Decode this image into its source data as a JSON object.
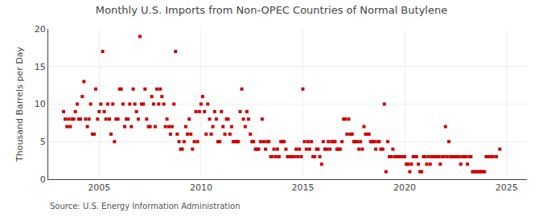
{
  "chart_data": {
    "type": "scatter",
    "title": "Monthly U.S. Imports from Non-OPEC Countries of Normal Butylene",
    "ylabel": "Thousand Barrels per Day",
    "source": "Source: U.S. Energy Information Administration",
    "color": "#cc0000",
    "marker": "square",
    "grid": true,
    "xlim": [
      2002.5,
      2026.0
    ],
    "ylim": [
      0,
      20
    ],
    "xticks": [
      2005,
      2010,
      2015,
      2020,
      2025
    ],
    "yticks": [
      0,
      5,
      10,
      15,
      20
    ],
    "x": [
      2003.25,
      2003.33,
      2003.42,
      2003.5,
      2003.58,
      2003.67,
      2003.75,
      2003.83,
      2003.92,
      2004.0,
      2004.08,
      2004.17,
      2004.25,
      2004.33,
      2004.42,
      2004.5,
      2004.58,
      2004.67,
      2004.75,
      2004.83,
      2004.92,
      2005.0,
      2005.08,
      2005.17,
      2005.25,
      2005.33,
      2005.42,
      2005.5,
      2005.58,
      2005.67,
      2005.75,
      2005.83,
      2005.92,
      2006.0,
      2006.08,
      2006.17,
      2006.25,
      2006.33,
      2006.42,
      2006.5,
      2006.58,
      2006.67,
      2006.75,
      2006.83,
      2006.92,
      2007.0,
      2007.08,
      2007.17,
      2007.25,
      2007.33,
      2007.42,
      2007.5,
      2007.58,
      2007.67,
      2007.75,
      2007.83,
      2007.92,
      2008.0,
      2008.08,
      2008.17,
      2008.25,
      2008.33,
      2008.42,
      2008.5,
      2008.58,
      2008.67,
      2008.75,
      2008.83,
      2008.92,
      2009.0,
      2009.08,
      2009.17,
      2009.25,
      2009.33,
      2009.42,
      2009.5,
      2009.58,
      2009.67,
      2009.75,
      2009.83,
      2009.92,
      2010.0,
      2010.08,
      2010.17,
      2010.25,
      2010.33,
      2010.42,
      2010.5,
      2010.58,
      2010.67,
      2010.75,
      2010.83,
      2010.92,
      2011.0,
      2011.08,
      2011.17,
      2011.25,
      2011.33,
      2011.42,
      2011.5,
      2011.58,
      2011.67,
      2011.75,
      2011.83,
      2011.92,
      2012.0,
      2012.08,
      2012.17,
      2012.25,
      2012.33,
      2012.42,
      2012.5,
      2012.58,
      2012.67,
      2012.75,
      2012.83,
      2012.92,
      2013.0,
      2013.08,
      2013.17,
      2013.25,
      2013.33,
      2013.42,
      2013.5,
      2013.58,
      2013.67,
      2013.75,
      2013.83,
      2013.92,
      2014.0,
      2014.08,
      2014.17,
      2014.25,
      2014.33,
      2014.42,
      2014.5,
      2014.58,
      2014.67,
      2014.75,
      2014.83,
      2014.92,
      2015.0,
      2015.08,
      2015.17,
      2015.25,
      2015.33,
      2015.42,
      2015.5,
      2015.58,
      2015.67,
      2015.75,
      2015.83,
      2015.92,
      2016.0,
      2016.08,
      2016.17,
      2016.25,
      2016.33,
      2016.42,
      2016.5,
      2016.58,
      2016.67,
      2016.75,
      2016.83,
      2016.92,
      2017.0,
      2017.08,
      2017.17,
      2017.25,
      2017.33,
      2017.42,
      2017.5,
      2017.58,
      2017.67,
      2017.75,
      2017.83,
      2017.92,
      2018.0,
      2018.08,
      2018.17,
      2018.25,
      2018.33,
      2018.42,
      2018.5,
      2018.58,
      2018.67,
      2018.75,
      2018.83,
      2018.92,
      2019.0,
      2019.08,
      2019.17,
      2019.25,
      2019.33,
      2019.42,
      2019.5,
      2019.58,
      2019.67,
      2019.75,
      2019.83,
      2019.92,
      2020.0,
      2020.08,
      2020.17,
      2020.25,
      2020.33,
      2020.42,
      2020.5,
      2020.58,
      2020.67,
      2020.75,
      2020.83,
      2020.92,
      2021.0,
      2021.08,
      2021.17,
      2021.25,
      2021.33,
      2021.42,
      2021.5,
      2021.58,
      2021.67,
      2021.75,
      2021.83,
      2021.92,
      2022.0,
      2022.08,
      2022.17,
      2022.25,
      2022.33,
      2022.42,
      2022.5,
      2022.58,
      2022.67,
      2022.75,
      2022.83,
      2022.92,
      2023.0,
      2023.08,
      2023.17,
      2023.25,
      2023.33,
      2023.42,
      2023.5,
      2023.58,
      2023.67,
      2023.75,
      2023.83,
      2023.92,
      2024.0,
      2024.08,
      2024.17,
      2024.25,
      2024.33,
      2024.5,
      2024.67
    ],
    "values": [
      9,
      8,
      7,
      8,
      7,
      8,
      8,
      9,
      10,
      8,
      8,
      11,
      13,
      8,
      7,
      8,
      10,
      6,
      6,
      12,
      8,
      9,
      10,
      17,
      9,
      8,
      10,
      8,
      6,
      10,
      5,
      8,
      8,
      12,
      12,
      10,
      7,
      8,
      8,
      10,
      7,
      12,
      10,
      9,
      8,
      19,
      10,
      10,
      12,
      8,
      7,
      7,
      11,
      10,
      7,
      12,
      10,
      12,
      11,
      10,
      7,
      8,
      7,
      6,
      7,
      10,
      17,
      6,
      5,
      4,
      4,
      5,
      7,
      6,
      8,
      6,
      4,
      5,
      9,
      5,
      9,
      10,
      11,
      9,
      6,
      10,
      8,
      6,
      7,
      9,
      8,
      5,
      5,
      9,
      7,
      6,
      8,
      8,
      6,
      7,
      5,
      5,
      5,
      5,
      9,
      12,
      8,
      7,
      9,
      8,
      6,
      5,
      5,
      4,
      4,
      4,
      5,
      8,
      5,
      4,
      5,
      5,
      3,
      3,
      4,
      3,
      4,
      3,
      5,
      5,
      5,
      4,
      3,
      3,
      3,
      3,
      3,
      4,
      3,
      4,
      3,
      12,
      5,
      4,
      5,
      4,
      5,
      3,
      3,
      4,
      4,
      3,
      2,
      5,
      4,
      4,
      5,
      4,
      5,
      5,
      5,
      4,
      4,
      4,
      5,
      8,
      8,
      6,
      8,
      6,
      6,
      5,
      5,
      5,
      4,
      5,
      4,
      7,
      6,
      6,
      6,
      5,
      5,
      5,
      4,
      5,
      5,
      4,
      4,
      10,
      1,
      5,
      3,
      3,
      4,
      3,
      3,
      3,
      3,
      3,
      3,
      3,
      2,
      2,
      1,
      2,
      3,
      3,
      3,
      2,
      1,
      1,
      3,
      3,
      2,
      3,
      2,
      3,
      3,
      3,
      3,
      3,
      2,
      3,
      3,
      7,
      3,
      5,
      3,
      3,
      3,
      3,
      3,
      3,
      2,
      3,
      3,
      3,
      2,
      3,
      3,
      1,
      1,
      1,
      1,
      1,
      1,
      1,
      1,
      3,
      3,
      3,
      3,
      3,
      3,
      4
    ]
  }
}
